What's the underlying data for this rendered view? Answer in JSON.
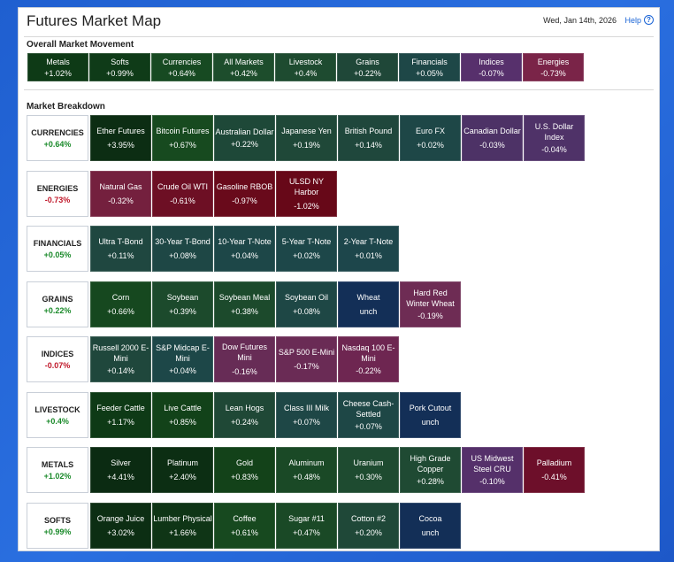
{
  "header": {
    "title": "Futures Market Map",
    "date": "Wed, Jan 14th, 2026",
    "help_label": "Help"
  },
  "overall": {
    "title": "Overall Market Movement",
    "items": [
      {
        "name": "Metals",
        "change": "+1.02%",
        "color": "#0e3a16"
      },
      {
        "name": "Softs",
        "change": "+0.99%",
        "color": "#0f3b18"
      },
      {
        "name": "Currencies",
        "change": "+0.64%",
        "color": "#174a22"
      },
      {
        "name": "All Markets",
        "change": "+0.42%",
        "color": "#1d4d2c"
      },
      {
        "name": "Livestock",
        "change": "+0.4%",
        "color": "#1e4b30"
      },
      {
        "name": "Grains",
        "change": "+0.22%",
        "color": "#1f4738"
      },
      {
        "name": "Financials",
        "change": "+0.05%",
        "color": "#1e4747"
      },
      {
        "name": "Indices",
        "change": "-0.07%",
        "color": "#57306c"
      },
      {
        "name": "Energies",
        "change": "-0.73%",
        "color": "#7a2448"
      }
    ]
  },
  "breakdown": {
    "title": "Market Breakdown",
    "rows": [
      {
        "name": "CURRENCIES",
        "change": "+0.64%",
        "sign": "pos",
        "items": [
          {
            "name": "Ether Futures",
            "change": "+3.95%",
            "color": "#0c2d13"
          },
          {
            "name": "Bitcoin Futures",
            "change": "+0.67%",
            "color": "#174a1f"
          },
          {
            "name": "Australian Dollar",
            "change": "+0.22%",
            "color": "#1e4838"
          },
          {
            "name": "Japanese Yen",
            "change": "+0.19%",
            "color": "#1f4838"
          },
          {
            "name": "British Pound",
            "change": "+0.14%",
            "color": "#1f473c"
          },
          {
            "name": "Euro FX",
            "change": "+0.02%",
            "color": "#1e4747"
          },
          {
            "name": "Canadian Dollar",
            "change": "-0.03%",
            "color": "#4d3266"
          },
          {
            "name": "U.S. Dollar Index",
            "change": "-0.04%",
            "color": "#4f3268"
          }
        ]
      },
      {
        "name": "ENERGIES",
        "change": "-0.73%",
        "sign": "neg",
        "items": [
          {
            "name": "Natural Gas",
            "change": "-0.32%",
            "color": "#74203e"
          },
          {
            "name": "Crude Oil WTI",
            "change": "-0.61%",
            "color": "#6d0f24"
          },
          {
            "name": "Gasoline RBOB",
            "change": "-0.97%",
            "color": "#690a1b"
          },
          {
            "name": "ULSD NY Harbor",
            "change": "-1.02%",
            "color": "#670818"
          }
        ]
      },
      {
        "name": "FINANCIALS",
        "change": "+0.05%",
        "sign": "pos",
        "items": [
          {
            "name": "Ultra T-Bond",
            "change": "+0.11%",
            "color": "#1f4740"
          },
          {
            "name": "30-Year T-Bond",
            "change": "+0.08%",
            "color": "#1e4745"
          },
          {
            "name": "10-Year T-Note",
            "change": "+0.04%",
            "color": "#1d4748"
          },
          {
            "name": "5-Year T-Note",
            "change": "+0.02%",
            "color": "#1d4749"
          },
          {
            "name": "2-Year T-Note",
            "change": "+0.01%",
            "color": "#1d464b"
          }
        ]
      },
      {
        "name": "GRAINS",
        "change": "+0.22%",
        "sign": "pos",
        "items": [
          {
            "name": "Corn",
            "change": "+0.66%",
            "color": "#16481f"
          },
          {
            "name": "Soybean",
            "change": "+0.39%",
            "color": "#1c4a2c"
          },
          {
            "name": "Soybean Meal",
            "change": "+0.38%",
            "color": "#1c4a2c"
          },
          {
            "name": "Soybean Oil",
            "change": "+0.08%",
            "color": "#1e4745"
          },
          {
            "name": "Wheat",
            "change": "unch",
            "color": "#132f57"
          },
          {
            "name": "Hard Red Winter Wheat",
            "change": "-0.19%",
            "color": "#6e2c54"
          }
        ]
      },
      {
        "name": "INDICES",
        "change": "-0.07%",
        "sign": "neg",
        "items": [
          {
            "name": "Russell 2000 E-Mini",
            "change": "+0.14%",
            "color": "#1f473c"
          },
          {
            "name": "S&P Midcap E-Mini",
            "change": "+0.04%",
            "color": "#1d4748"
          },
          {
            "name": "Dow Futures Mini",
            "change": "-0.16%",
            "color": "#672c56"
          },
          {
            "name": "S&P 500 E-Mini",
            "change": "-0.17%",
            "color": "#6a2b55"
          },
          {
            "name": "Nasdaq 100 E-Mini",
            "change": "-0.22%",
            "color": "#6e2651"
          }
        ]
      },
      {
        "name": "LIVESTOCK",
        "change": "+0.4%",
        "sign": "pos",
        "items": [
          {
            "name": "Feeder Cattle",
            "change": "+1.17%",
            "color": "#0e3a16"
          },
          {
            "name": "Live Cattle",
            "change": "+0.85%",
            "color": "#124219"
          },
          {
            "name": "Lean Hogs",
            "change": "+0.24%",
            "color": "#1f4836"
          },
          {
            "name": "Class III Milk",
            "change": "+0.07%",
            "color": "#1e4746"
          },
          {
            "name": "Cheese Cash-Settled",
            "change": "+0.07%",
            "color": "#1e4746"
          },
          {
            "name": "Pork Cutout",
            "change": "unch",
            "color": "#132f57"
          }
        ]
      },
      {
        "name": "METALS",
        "change": "+1.02%",
        "sign": "pos",
        "items": [
          {
            "name": "Silver",
            "change": "+4.41%",
            "color": "#0b2b12"
          },
          {
            "name": "Platinum",
            "change": "+2.40%",
            "color": "#0c2e13"
          },
          {
            "name": "Gold",
            "change": "+0.83%",
            "color": "#134219"
          },
          {
            "name": "Aluminum",
            "change": "+0.48%",
            "color": "#1a4926"
          },
          {
            "name": "Uranium",
            "change": "+0.30%",
            "color": "#1e4b30"
          },
          {
            "name": "High Grade Copper",
            "change": "+0.28%",
            "color": "#1f4a33"
          },
          {
            "name": "US Midwest Steel CRU",
            "change": "-0.10%",
            "color": "#55306a"
          },
          {
            "name": "Palladium",
            "change": "-0.41%",
            "color": "#6d0f2a"
          }
        ]
      },
      {
        "name": "SOFTS",
        "change": "+0.99%",
        "sign": "pos",
        "items": [
          {
            "name": "Orange Juice",
            "change": "+3.02%",
            "color": "#0c2e13"
          },
          {
            "name": "Lumber Physical",
            "change": "+1.66%",
            "color": "#0f3516"
          },
          {
            "name": "Coffee",
            "change": "+0.61%",
            "color": "#17491f"
          },
          {
            "name": "Sugar #11",
            "change": "+0.47%",
            "color": "#1a4926"
          },
          {
            "name": "Cotton #2",
            "change": "+0.20%",
            "color": "#1f4838"
          },
          {
            "name": "Cocoa",
            "change": "unch",
            "color": "#132f57"
          }
        ]
      }
    ]
  }
}
